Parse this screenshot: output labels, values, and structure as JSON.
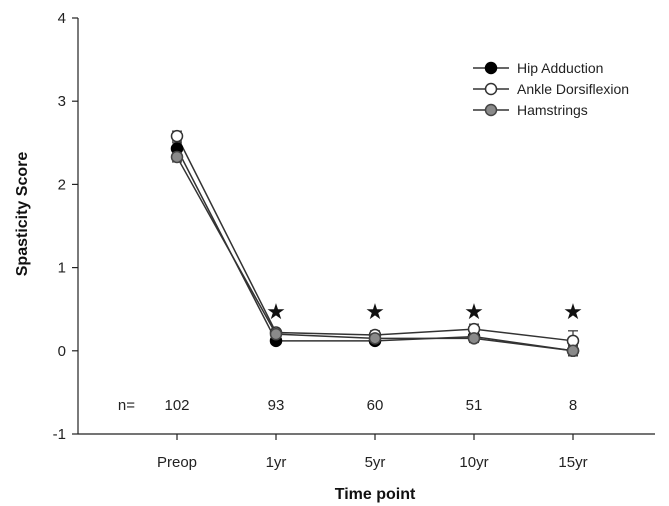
{
  "chart_data": {
    "type": "line",
    "xlabel": "Time point",
    "ylabel": "Spasticity Score",
    "ylim": [
      -1,
      4
    ],
    "y_ticks": [
      "-1",
      "0",
      "1",
      "2",
      "3",
      "4"
    ],
    "categories": [
      "Preop",
      "1yr",
      "5yr",
      "10yr",
      "15yr"
    ],
    "legend_position": "top-right",
    "grid": false,
    "series": [
      {
        "name": "Hip Adduction",
        "marker": "filled-circle",
        "color": "#000000",
        "values": [
          2.43,
          0.12,
          0.12,
          0.17,
          0.0
        ],
        "error": [
          0.07,
          0.03,
          0.03,
          0.05,
          0.06
        ]
      },
      {
        "name": "Ankle Dorsiflexion",
        "marker": "open-circle",
        "color": "#ffffff",
        "values": [
          2.58,
          0.22,
          0.19,
          0.26,
          0.12
        ],
        "error": [
          0.06,
          0.04,
          0.05,
          0.06,
          0.12
        ]
      },
      {
        "name": "Hamstrings",
        "marker": "gray-circle",
        "color": "#8a8a8a",
        "values": [
          2.33,
          0.2,
          0.15,
          0.15,
          0.0
        ],
        "error": [
          0.06,
          0.03,
          0.04,
          0.05,
          0.06
        ]
      }
    ],
    "n_prefix": "n=",
    "n_values": [
      "102",
      "93",
      "60",
      "51",
      "8"
    ],
    "n_y": -0.65,
    "significance": {
      "symbol": "★",
      "categories": [
        "1yr",
        "5yr",
        "10yr",
        "15yr"
      ]
    }
  }
}
